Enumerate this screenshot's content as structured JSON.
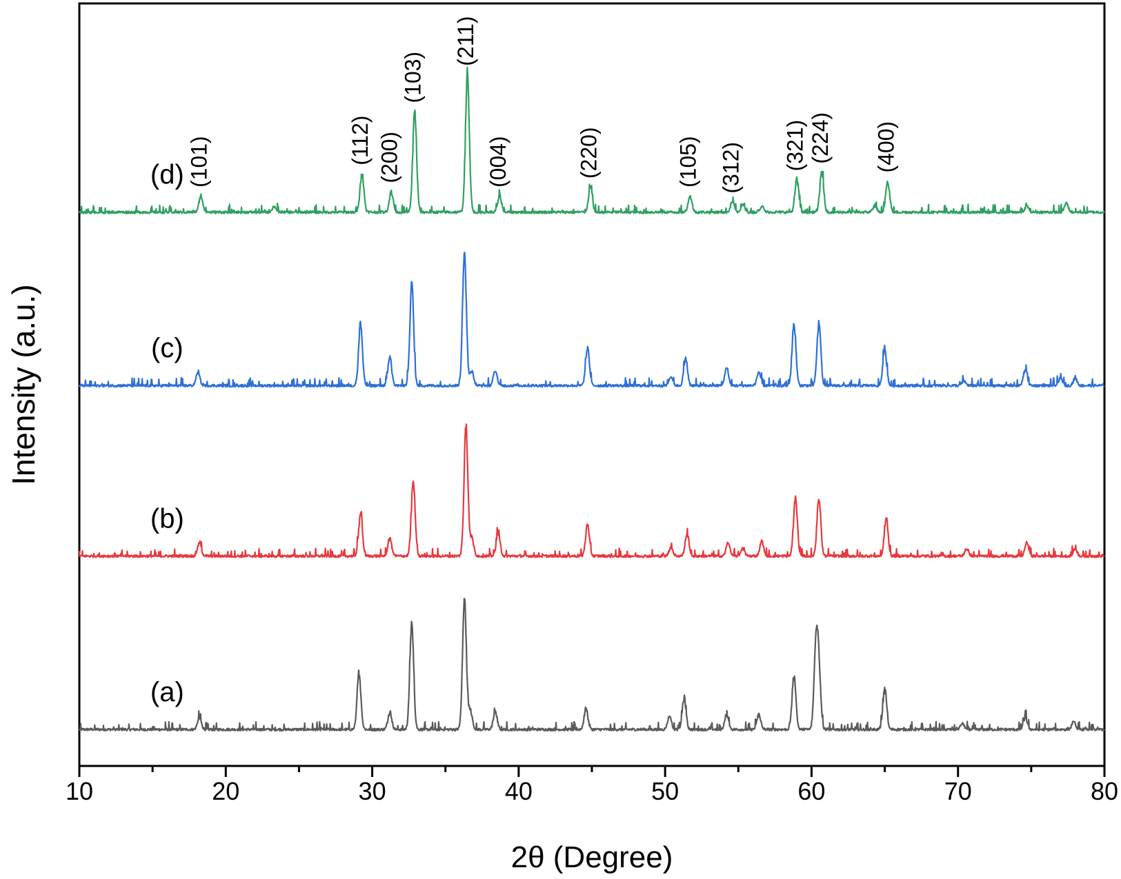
{
  "chart_data": {
    "type": "line",
    "xlabel": "2θ (Degree)",
    "ylabel": "Intensity (a.u.)",
    "xlim": [
      10,
      80
    ],
    "xticks": [
      10,
      20,
      30,
      40,
      50,
      60,
      70,
      80
    ],
    "grid": false,
    "colors": {
      "a": "#5a5a5a",
      "b": "#e8383d",
      "c": "#2d6fd6",
      "d": "#2fa060"
    },
    "series": [
      {
        "name": "(a)",
        "baseline": 0,
        "peaks": [
          [
            18.2,
            0.8
          ],
          [
            29.1,
            3.8
          ],
          [
            31.2,
            1.2
          ],
          [
            32.7,
            7.2
          ],
          [
            36.3,
            8.8
          ],
          [
            36.7,
            1.3
          ],
          [
            38.4,
            1.2
          ],
          [
            44.6,
            1.4
          ],
          [
            50.3,
            0.9
          ],
          [
            51.3,
            2.1
          ],
          [
            54.2,
            1.0
          ],
          [
            56.4,
            1.0
          ],
          [
            58.8,
            3.6
          ],
          [
            60.3,
            5.6
          ],
          [
            60.5,
            3.8
          ],
          [
            65.0,
            2.7
          ],
          [
            70.3,
            0.4
          ],
          [
            74.6,
            0.8
          ],
          [
            77.9,
            0.5
          ]
        ]
      },
      {
        "name": "(b)",
        "baseline": 11.7,
        "peaks": [
          [
            18.2,
            0.9
          ],
          [
            29.2,
            2.9
          ],
          [
            31.2,
            1.2
          ],
          [
            32.8,
            5.0
          ],
          [
            36.4,
            8.8
          ],
          [
            36.8,
            1.2
          ],
          [
            38.6,
            1.6
          ],
          [
            44.7,
            2.1
          ],
          [
            50.4,
            0.6
          ],
          [
            51.5,
            1.5
          ],
          [
            54.3,
            0.9
          ],
          [
            55.3,
            0.5
          ],
          [
            56.6,
            1.0
          ],
          [
            58.9,
            3.9
          ],
          [
            60.5,
            3.9
          ],
          [
            65.1,
            2.5
          ],
          [
            70.6,
            0.5
          ],
          [
            74.7,
            0.9
          ],
          [
            78.0,
            0.5
          ]
        ]
      },
      {
        "name": "(c)",
        "baseline": 23.2,
        "peaks": [
          [
            18.1,
            0.9
          ],
          [
            29.2,
            4.2
          ],
          [
            31.2,
            1.9
          ],
          [
            32.7,
            6.9
          ],
          [
            36.3,
            9.0
          ],
          [
            36.8,
            1.0
          ],
          [
            38.4,
            1.0
          ],
          [
            44.7,
            2.5
          ],
          [
            50.4,
            0.6
          ],
          [
            51.4,
            1.8
          ],
          [
            54.2,
            1.2
          ],
          [
            56.4,
            0.9
          ],
          [
            58.8,
            4.2
          ],
          [
            60.5,
            4.2
          ],
          [
            65.0,
            2.5
          ],
          [
            70.4,
            0.3
          ],
          [
            74.6,
            1.1
          ],
          [
            77.0,
            0.5
          ],
          [
            78.0,
            0.5
          ]
        ]
      },
      {
        "name": "(d)",
        "baseline": 34.9,
        "peaks": [
          [
            18.3,
            1.1
          ],
          [
            23.3,
            0.4
          ],
          [
            29.3,
            2.6
          ],
          [
            31.3,
            1.4
          ],
          [
            32.9,
            6.8
          ],
          [
            36.5,
            9.3
          ],
          [
            38.7,
            1.1
          ],
          [
            44.9,
            1.7
          ],
          [
            51.7,
            1.1
          ],
          [
            54.6,
            0.7
          ],
          [
            55.3,
            0.5
          ],
          [
            56.6,
            0.4
          ],
          [
            59.0,
            2.2
          ],
          [
            60.7,
            2.7
          ],
          [
            64.3,
            0.4
          ],
          [
            65.2,
            2.1
          ],
          [
            74.7,
            0.4
          ],
          [
            77.4,
            0.6
          ]
        ]
      }
    ],
    "annotations": [
      {
        "text": "(101)",
        "x": 18.3
      },
      {
        "text": "(112)",
        "x": 29.3
      },
      {
        "text": "(200)",
        "x": 31.3
      },
      {
        "text": "(103)",
        "x": 32.9
      },
      {
        "text": "(211)",
        "x": 36.5
      },
      {
        "text": "(004)",
        "x": 38.7
      },
      {
        "text": "(220)",
        "x": 44.9
      },
      {
        "text": "(105)",
        "x": 51.7
      },
      {
        "text": "(312)",
        "x": 54.6
      },
      {
        "text": "(321)",
        "x": 59.0
      },
      {
        "text": "(224)",
        "x": 60.7
      },
      {
        "text": "(400)",
        "x": 65.2
      }
    ]
  }
}
